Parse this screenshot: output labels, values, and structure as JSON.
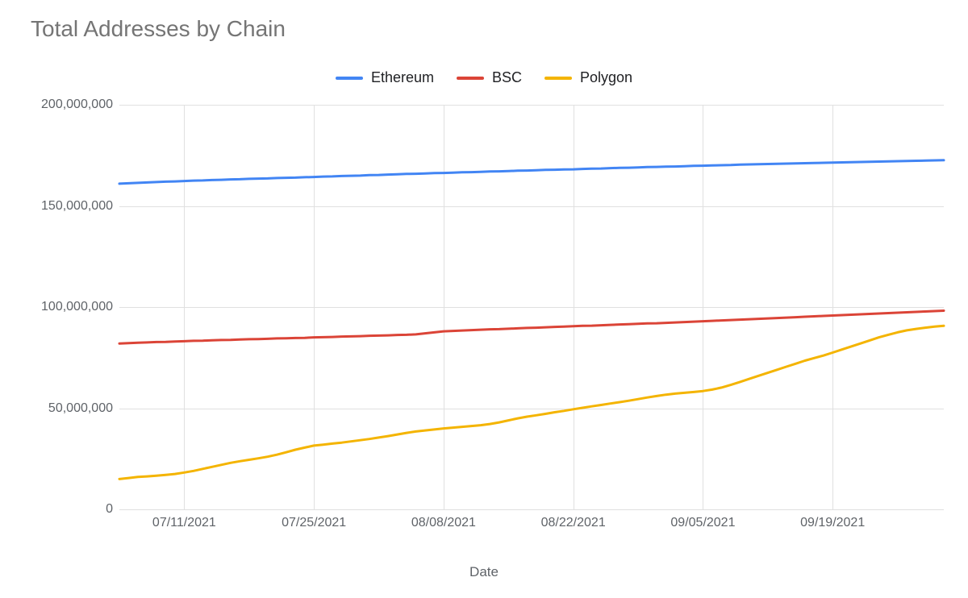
{
  "chart": {
    "type": "line",
    "title": "Total Addresses by Chain",
    "title_color": "#757575",
    "title_fontsize": 28,
    "background_color": "#ffffff",
    "grid_color": "#e0e0e0",
    "axis_label_color": "#5f6368",
    "legend_label_color": "#202124",
    "x_label": "Date",
    "label_fontsize": 17,
    "tick_fontsize": 16,
    "line_width": 3,
    "y_axis": {
      "min": 0,
      "max": 200000000,
      "step": 50000000,
      "ticks": [
        "0",
        "50,000,000",
        "100,000,000",
        "150,000,000",
        "200,000,000"
      ]
    },
    "x_axis": {
      "n_points": 90,
      "grid_indices": [
        7,
        21,
        35,
        49,
        63,
        77
      ],
      "x_ticks": [
        {
          "idx": 7,
          "label": "07/11/2021"
        },
        {
          "idx": 21,
          "label": "07/25/2021"
        },
        {
          "idx": 35,
          "label": "08/08/2021"
        },
        {
          "idx": 49,
          "label": "08/22/2021"
        },
        {
          "idx": 63,
          "label": "09/05/2021"
        },
        {
          "idx": 77,
          "label": "09/19/2021"
        }
      ]
    },
    "legend": {
      "items": [
        {
          "label": "Ethereum",
          "color": "#4285f4"
        },
        {
          "label": "BSC",
          "color": "#db4437"
        },
        {
          "label": "Polygon",
          "color": "#f4b400"
        }
      ]
    },
    "series": [
      {
        "name": "Ethereum",
        "color": "#4285f4",
        "values": [
          161000000,
          161200000,
          161400000,
          161600000,
          161800000,
          162000000,
          162100000,
          162300000,
          162500000,
          162600000,
          162800000,
          162900000,
          163100000,
          163200000,
          163400000,
          163500000,
          163600000,
          163800000,
          163900000,
          164000000,
          164200000,
          164300000,
          164500000,
          164600000,
          164800000,
          164900000,
          165000000,
          165200000,
          165300000,
          165500000,
          165600000,
          165800000,
          165900000,
          166000000,
          166200000,
          166300000,
          166400000,
          166600000,
          166700000,
          166800000,
          167000000,
          167100000,
          167200000,
          167400000,
          167500000,
          167600000,
          167800000,
          167900000,
          168000000,
          168100000,
          168300000,
          168400000,
          168500000,
          168700000,
          168800000,
          168900000,
          169000000,
          169200000,
          169300000,
          169400000,
          169500000,
          169600000,
          169800000,
          169900000,
          170000000,
          170100000,
          170200000,
          170400000,
          170500000,
          170600000,
          170700000,
          170800000,
          170900000,
          171000000,
          171100000,
          171200000,
          171300000,
          171400000,
          171500000,
          171600000,
          171700000,
          171800000,
          171900000,
          172000000,
          172100000,
          172200000,
          172300000,
          172400000,
          172500000,
          172600000
        ]
      },
      {
        "name": "BSC",
        "color": "#db4437",
        "values": [
          82000000,
          82200000,
          82400000,
          82500000,
          82700000,
          82800000,
          83000000,
          83100000,
          83300000,
          83400000,
          83600000,
          83700000,
          83800000,
          84000000,
          84100000,
          84200000,
          84300000,
          84500000,
          84600000,
          84700000,
          84800000,
          85000000,
          85100000,
          85200000,
          85400000,
          85500000,
          85600000,
          85800000,
          85900000,
          86000000,
          86200000,
          86300000,
          86500000,
          87000000,
          87500000,
          88000000,
          88200000,
          88400000,
          88600000,
          88800000,
          89000000,
          89100000,
          89300000,
          89500000,
          89700000,
          89800000,
          90000000,
          90200000,
          90300000,
          90500000,
          90700000,
          90800000,
          91000000,
          91200000,
          91400000,
          91500000,
          91700000,
          91900000,
          92000000,
          92200000,
          92400000,
          92600000,
          92800000,
          93000000,
          93200000,
          93400000,
          93600000,
          93800000,
          94000000,
          94200000,
          94400000,
          94600000,
          94800000,
          95000000,
          95200000,
          95400000,
          95600000,
          95800000,
          96000000,
          96200000,
          96400000,
          96600000,
          96800000,
          97000000,
          97200000,
          97400000,
          97600000,
          97800000,
          98000000,
          98200000
        ]
      },
      {
        "name": "Polygon",
        "color": "#f4b400",
        "values": [
          15000000,
          15500000,
          16000000,
          16300000,
          16600000,
          17000000,
          17500000,
          18200000,
          19000000,
          20000000,
          21000000,
          22000000,
          23000000,
          23800000,
          24500000,
          25200000,
          26000000,
          27000000,
          28200000,
          29500000,
          30500000,
          31500000,
          32000000,
          32500000,
          33000000,
          33600000,
          34200000,
          34800000,
          35500000,
          36200000,
          37000000,
          37800000,
          38500000,
          39000000,
          39500000,
          40000000,
          40400000,
          40800000,
          41200000,
          41600000,
          42200000,
          43000000,
          44000000,
          45000000,
          45800000,
          46500000,
          47200000,
          48000000,
          48700000,
          49500000,
          50200000,
          50900000,
          51600000,
          52300000,
          53000000,
          53700000,
          54500000,
          55300000,
          56000000,
          56700000,
          57200000,
          57600000,
          58000000,
          58500000,
          59200000,
          60200000,
          61500000,
          63000000,
          64500000,
          66000000,
          67500000,
          69000000,
          70500000,
          72000000,
          73500000,
          74800000,
          76000000,
          77500000,
          79000000,
          80500000,
          82000000,
          83500000,
          85000000,
          86300000,
          87500000,
          88500000,
          89200000,
          89800000,
          90300000,
          90700000
        ]
      }
    ]
  }
}
